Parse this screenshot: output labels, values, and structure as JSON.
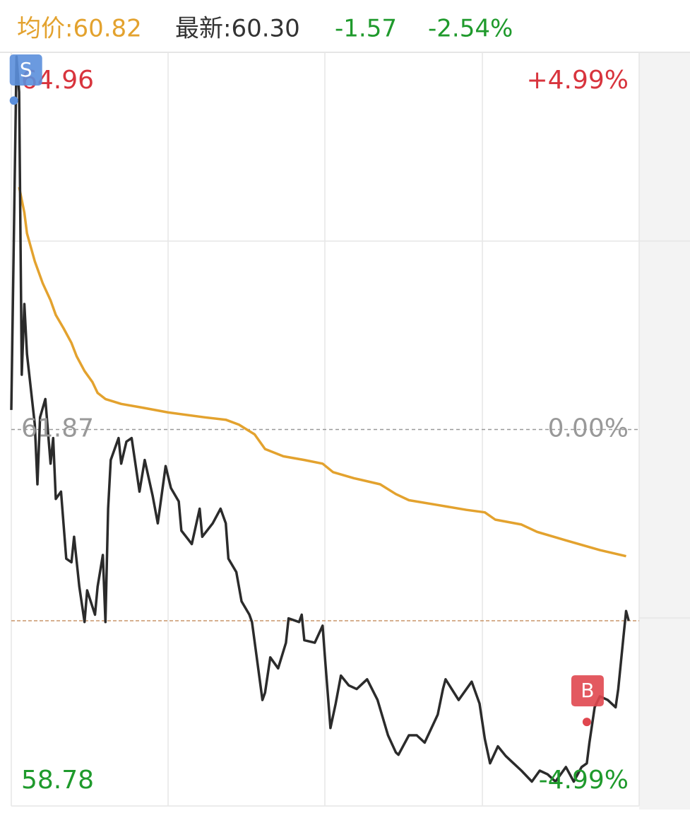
{
  "header": {
    "avg": "均价:60.82",
    "latest": "最新:60.30",
    "change": "-1.57",
    "change_pct": "-2.54%"
  },
  "chart_data": {
    "type": "line",
    "xlim": [
      0,
      240
    ],
    "ylim": [
      58.78,
      64.96
    ],
    "yticks": [
      58.78,
      61.87,
      64.96
    ],
    "y2lim": [
      -4.99,
      4.99
    ],
    "y2ticks": [
      {
        "value": -4.99,
        "label": "-4.99%"
      },
      {
        "value": 0,
        "label": "0.00%"
      },
      {
        "value": 4.99,
        "label": "+4.99%"
      }
    ],
    "reference_line": 60.3,
    "series": [
      {
        "name": "最新",
        "color": "#2b2b2b",
        "x": [
          0,
          2,
          3,
          4,
          5,
          6,
          9,
          10,
          11,
          13,
          15,
          16,
          17,
          19,
          21,
          23,
          24,
          26,
          28,
          29,
          32,
          33,
          35,
          36,
          37,
          38,
          40,
          41,
          42,
          44,
          46,
          49,
          51,
          54,
          56,
          59,
          61,
          64,
          65,
          69,
          72,
          73,
          77,
          80,
          82,
          83,
          86,
          88,
          91,
          92,
          94,
          96,
          97,
          99,
          102,
          105,
          106,
          110,
          111,
          112,
          116,
          119,
          120,
          122,
          124,
          126,
          129,
          132,
          136,
          140,
          144,
          147,
          148,
          152,
          155,
          158,
          163,
          165,
          166,
          171,
          176,
          179,
          181,
          183,
          186,
          189,
          192,
          195,
          199,
          202,
          205,
          208,
          212,
          215,
          218,
          220,
          221,
          223,
          225,
          228,
          231,
          232,
          234,
          235,
          236
        ],
        "values": [
          62.03,
          64.93,
          64.64,
          62.32,
          62.9,
          62.49,
          61.91,
          61.42,
          61.97,
          62.12,
          61.59,
          61.8,
          61.3,
          61.36,
          60.81,
          60.78,
          60.99,
          60.58,
          60.29,
          60.55,
          60.35,
          60.58,
          60.84,
          60.29,
          61.22,
          61.62,
          61.74,
          61.8,
          61.59,
          61.77,
          61.8,
          61.36,
          61.62,
          61.33,
          61.1,
          61.57,
          61.39,
          61.28,
          61.04,
          60.93,
          61.22,
          60.99,
          61.1,
          61.22,
          61.1,
          60.81,
          60.7,
          60.46,
          60.35,
          60.29,
          59.97,
          59.65,
          59.71,
          60.0,
          59.91,
          60.12,
          60.32,
          60.29,
          60.35,
          60.14,
          60.12,
          60.26,
          59.97,
          59.42,
          59.62,
          59.85,
          59.77,
          59.74,
          59.82,
          59.65,
          59.36,
          59.22,
          59.2,
          59.36,
          59.36,
          59.3,
          59.53,
          59.74,
          59.82,
          59.65,
          59.8,
          59.62,
          59.33,
          59.13,
          59.27,
          59.19,
          59.13,
          59.07,
          58.98,
          59.07,
          59.04,
          58.98,
          59.1,
          58.98,
          59.1,
          59.13,
          59.3,
          59.59,
          59.68,
          59.65,
          59.59,
          59.74,
          60.17,
          60.38,
          60.3
        ]
      },
      {
        "name": "均价",
        "color": "#e3a22e",
        "x": [
          3,
          5,
          6,
          9,
          12,
          15,
          17,
          20,
          23,
          25,
          28,
          31,
          33,
          36,
          42,
          50,
          60,
          74,
          82,
          87,
          93,
          97,
          104,
          112,
          119,
          123,
          131,
          141,
          147,
          152,
          163,
          174,
          181,
          185,
          195,
          201,
          212,
          225,
          235
        ],
        "values": [
          63.86,
          63.65,
          63.48,
          63.25,
          63.07,
          62.93,
          62.81,
          62.7,
          62.58,
          62.47,
          62.35,
          62.26,
          62.17,
          62.12,
          62.08,
          62.05,
          62.01,
          61.97,
          61.95,
          61.91,
          61.83,
          61.71,
          61.65,
          61.62,
          61.59,
          61.52,
          61.47,
          61.42,
          61.34,
          61.29,
          61.25,
          61.21,
          61.19,
          61.13,
          61.09,
          61.03,
          60.96,
          60.88,
          60.83
        ]
      }
    ],
    "annotations": [
      {
        "label": "S",
        "x": 1,
        "y": 64.57,
        "color": "#5b8fdc"
      },
      {
        "label": "B",
        "x": 220,
        "y": 59.47,
        "color": "#e0474f"
      }
    ]
  }
}
